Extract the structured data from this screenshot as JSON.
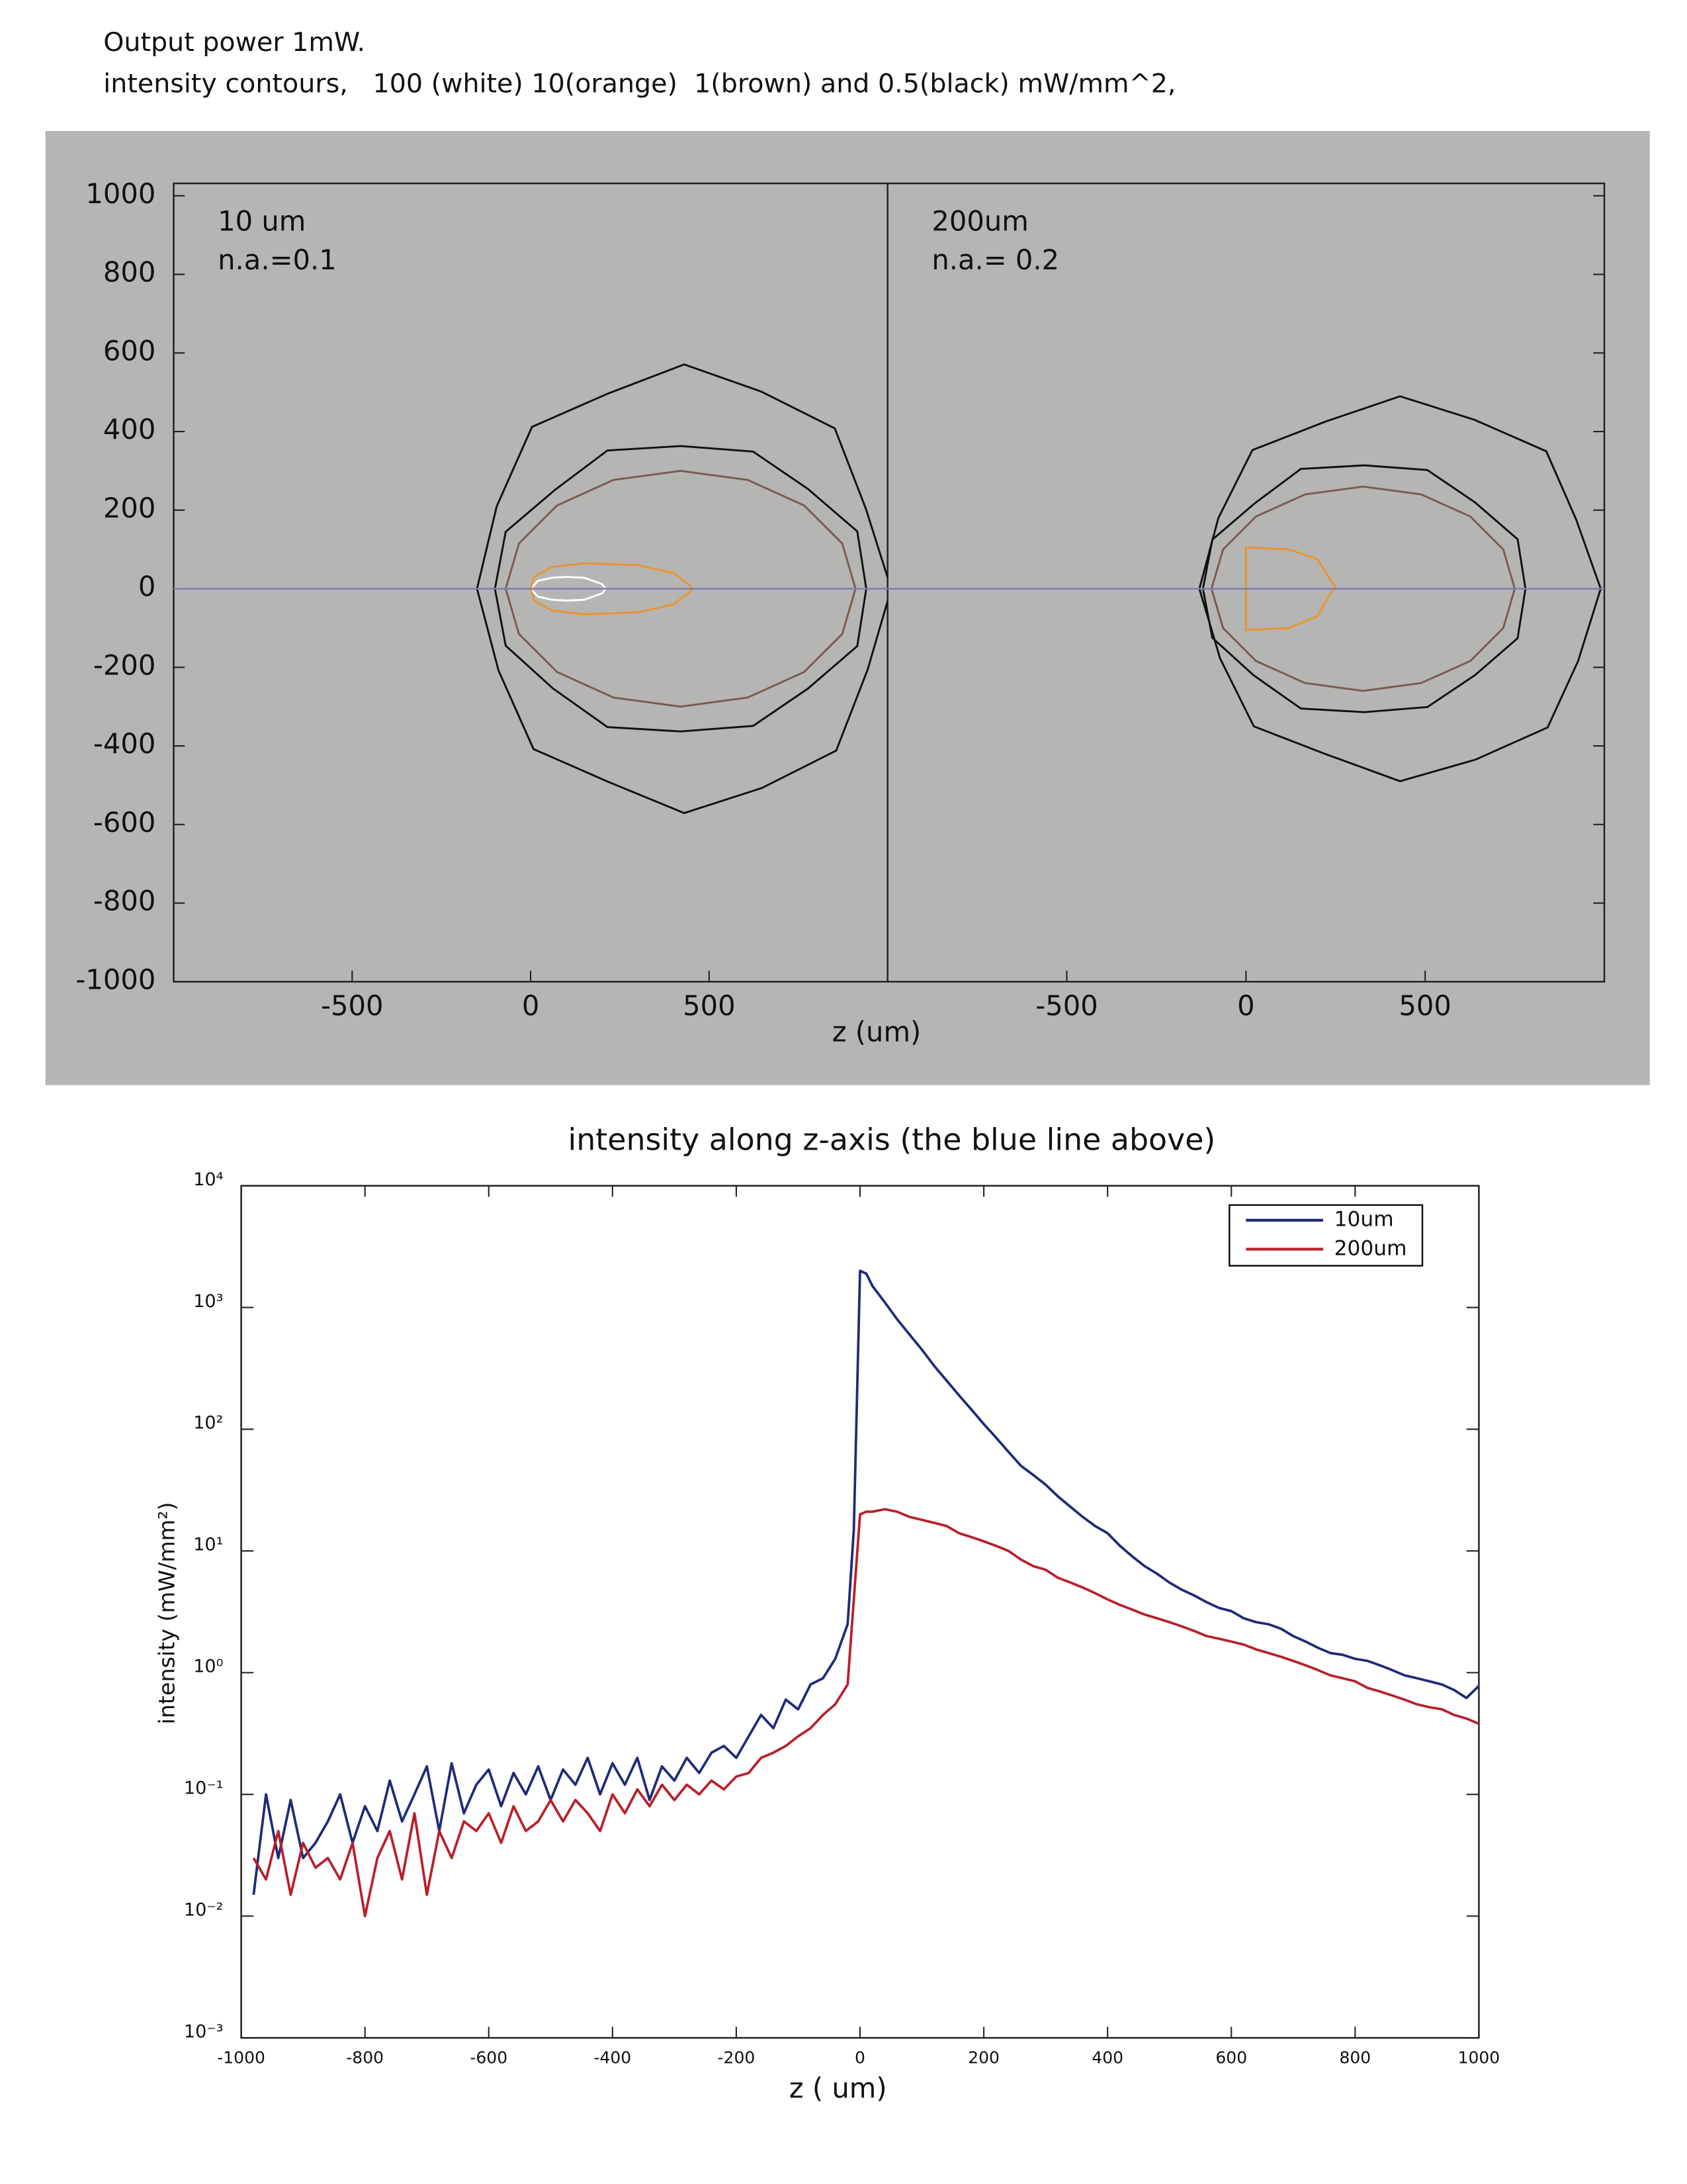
{
  "chart_data": [
    {
      "type": "contour_panels",
      "title": [
        "Output power 1mW.",
        "intensity contours,   100 (white) 10(orange)  1(brown) and 0.5(black) mW/mm^2,"
      ],
      "xlabel": "z (um)",
      "ylim": [
        -1000,
        1000
      ],
      "yticks": [
        -1000,
        -800,
        -600,
        -400,
        -200,
        0,
        200,
        400,
        600,
        800,
        1000
      ],
      "guide_line": {
        "y": 0,
        "color": "#7e7eb0"
      },
      "panels": [
        {
          "annotations": [
            "10 um",
            "n.a.=0.1"
          ],
          "xlim": [
            -1000,
            1000
          ],
          "xticks": [
            -500,
            0,
            500
          ],
          "contours": [
            {
              "color": "#ffffff",
              "x": [
                0,
                20,
                60,
                100,
                150,
                200,
                210,
                200,
                150,
                100,
                60,
                20
              ],
              "y": [
                0,
                20,
                28,
                30,
                28,
                12,
                0,
                -12,
                -28,
                -30,
                -28,
                -20
              ]
            },
            {
              "color": "#e8962e",
              "x": [
                0,
                10,
                60,
                150,
                300,
                400,
                450,
                450,
                400,
                300,
                150,
                60,
                10
              ],
              "y": [
                0,
                30,
                55,
                65,
                60,
                40,
                5,
                -5,
                -40,
                -60,
                -65,
                -55,
                -30
              ]
            },
            {
              "color": "#7a5a50",
              "x": [
                910,
                873,
                766,
                608,
                420,
                232,
                74,
                -33,
                -70,
                -33,
                74,
                232,
                420,
                608,
                766,
                873
              ],
              "y": [
                0,
                115,
                212,
                277,
                300,
                277,
                212,
                115,
                0,
                -115,
                -212,
                -277,
                -300,
                -277,
                -212,
                -115
              ]
            },
            {
              "color": "#111111",
              "x": [
                1010,
                939,
                852,
                645,
                430,
                217,
                4,
                -95,
                -150,
                -90,
                8,
                219,
                430,
                648,
                856,
                944
              ],
              "y": [
                0,
                204,
                408,
                502,
                571,
                497,
                412,
                210,
                0,
                -208,
                -408,
                -492,
                -571,
                -507,
                -412,
                -206
              ]
            },
            {
              "color": "#111111",
              "x": [
                940,
                915,
                777,
                623,
                420,
                215,
                67,
                -70,
                -100,
                -70,
                63,
                215,
                420,
                623,
                777,
                915
              ],
              "y": [
                0,
                146,
                254,
                349,
                363,
                352,
                251,
                145,
                0,
                -145,
                -254,
                -352,
                -363,
                -349,
                -254,
                -146
              ]
            }
          ]
        },
        {
          "annotations": [
            "200um",
            "n.a.= 0.2"
          ],
          "xlim": [
            -1000,
            1000
          ],
          "xticks": [
            -500,
            0,
            500
          ],
          "contours": [
            {
              "color": "#e8962e",
              "x": [
                0,
                120,
                200,
                230,
                250,
                230,
                200,
                120,
                0
              ],
              "y": [
                105,
                100,
                75,
                30,
                5,
                -20,
                -70,
                -100,
                -105
              ]
            },
            {
              "color": "#7a5a50",
              "x": [
                750,
                718,
                626,
                489,
                327,
                165,
                28,
                -64,
                -96,
                -64,
                28,
                165,
                327,
                489,
                626,
                718
              ],
              "y": [
                0,
                100,
                184,
                240,
                260,
                240,
                184,
                100,
                0,
                -100,
                -184,
                -240,
                -260,
                -240,
                -184,
                -100
              ]
            },
            {
              "color": "#111111",
              "x": [
                990,
                922,
                838,
                638,
                430,
                224,
                18,
                -77,
                -130,
                -72,
                22,
                226,
                430,
                640,
                842,
                927
              ],
              "y": [
                0,
                175,
                350,
                430,
                490,
                426,
                353,
                180,
                0,
                -178,
                -350,
                -422,
                -490,
                -435,
                -353,
                -184
              ]
            },
            {
              "color": "#111111",
              "x": [
                780,
                758,
                639,
                506,
                330,
                153,
                24,
                -94,
                -120,
                -94,
                21,
                153,
                330,
                506,
                639,
                758
              ],
              "y": [
                0,
                126,
                220,
                302,
                314,
                305,
                217,
                125,
                0,
                -125,
                -220,
                -305,
                -314,
                -301,
                -220,
                -126
              ]
            }
          ]
        }
      ]
    },
    {
      "type": "line",
      "title": "intensity along z-axis (the blue line above)",
      "xlabel": "z ( um)",
      "ylabel": "intensity (mW/mm²)",
      "log_y": true,
      "xlim": [
        -1000,
        1000
      ],
      "xticks": [
        -1000,
        -800,
        -600,
        -400,
        -200,
        0,
        200,
        400,
        600,
        800,
        1000
      ],
      "ylim": [
        0.001,
        10000
      ],
      "yticks": [
        {
          "value": 0.001,
          "label": "10⁻³"
        },
        {
          "value": 0.01,
          "label": "10⁻²"
        },
        {
          "value": 0.1,
          "label": "10⁻¹"
        },
        {
          "value": 1,
          "label": "10⁰"
        },
        {
          "value": 10,
          "label": "10¹"
        },
        {
          "value": 100,
          "label": "10²"
        },
        {
          "value": 1000,
          "label": "10³"
        },
        {
          "value": 10000,
          "label": "10⁴"
        }
      ],
      "legend": "upper right",
      "x": [
        -980,
        -960,
        -940,
        -920,
        -900,
        -880,
        -860,
        -840,
        -820,
        -800,
        -780,
        -760,
        -740,
        -720,
        -700,
        -680,
        -660,
        -640,
        -620,
        -600,
        -580,
        -560,
        -540,
        -520,
        -500,
        -480,
        -460,
        -440,
        -420,
        -400,
        -380,
        -360,
        -340,
        -320,
        -300,
        -280,
        -260,
        -240,
        -220,
        -200,
        -180,
        -160,
        -140,
        -120,
        -100,
        -80,
        -60,
        -40,
        -20,
        -10,
        0,
        10,
        20,
        40,
        60,
        80,
        100,
        120,
        140,
        160,
        180,
        200,
        220,
        240,
        260,
        280,
        300,
        320,
        340,
        360,
        380,
        400,
        420,
        440,
        460,
        480,
        500,
        520,
        540,
        560,
        580,
        600,
        620,
        640,
        660,
        680,
        700,
        720,
        740,
        760,
        780,
        800,
        820,
        840,
        860,
        880,
        900,
        920,
        940,
        960,
        980,
        1000
      ],
      "series": [
        {
          "name": "10um",
          "color": "#1f2a78",
          "values": [
            0.015,
            0.1,
            0.03,
            0.09,
            0.03,
            0.04,
            0.06,
            0.1,
            0.04,
            0.08,
            0.05,
            0.13,
            0.06,
            0.1,
            0.17,
            0.05,
            0.18,
            0.07,
            0.12,
            0.16,
            0.08,
            0.15,
            0.1,
            0.17,
            0.09,
            0.16,
            0.12,
            0.2,
            0.1,
            0.18,
            0.12,
            0.2,
            0.09,
            0.17,
            0.13,
            0.2,
            0.15,
            0.22,
            0.25,
            0.2,
            0.3,
            0.45,
            0.35,
            0.6,
            0.5,
            0.8,
            0.9,
            1.3,
            2.5,
            15,
            2000,
            1900,
            1500,
            1100,
            800,
            600,
            450,
            330,
            250,
            190,
            145,
            110,
            85,
            65,
            50,
            42,
            35,
            28,
            23,
            19,
            16,
            14,
            11,
            9,
            7.5,
            6.5,
            5.5,
            4.8,
            4.3,
            3.8,
            3.4,
            3.2,
            2.8,
            2.6,
            2.5,
            2.3,
            2.0,
            1.8,
            1.6,
            1.45,
            1.4,
            1.3,
            1.25,
            1.15,
            1.05,
            0.95,
            0.9,
            0.85,
            0.8,
            0.72,
            0.62,
            0.78
          ]
        },
        {
          "name": "200um",
          "color": "#b8202a",
          "values": [
            0.03,
            0.02,
            0.05,
            0.015,
            0.04,
            0.025,
            0.03,
            0.02,
            0.04,
            0.01,
            0.03,
            0.05,
            0.02,
            0.07,
            0.015,
            0.05,
            0.03,
            0.06,
            0.05,
            0.07,
            0.04,
            0.08,
            0.05,
            0.06,
            0.09,
            0.06,
            0.09,
            0.07,
            0.05,
            0.1,
            0.07,
            0.11,
            0.08,
            0.12,
            0.09,
            0.12,
            0.1,
            0.13,
            0.11,
            0.14,
            0.15,
            0.2,
            0.22,
            0.25,
            0.3,
            0.35,
            0.45,
            0.55,
            0.8,
            4,
            20,
            21,
            21,
            22,
            21,
            19,
            18,
            17,
            16,
            14,
            13,
            12,
            11,
            10,
            8.5,
            7.5,
            7,
            6,
            5.5,
            5,
            4.5,
            4,
            3.6,
            3.3,
            3,
            2.8,
            2.6,
            2.4,
            2.2,
            2.0,
            1.9,
            1.8,
            1.7,
            1.55,
            1.45,
            1.35,
            1.25,
            1.15,
            1.05,
            0.95,
            0.9,
            0.85,
            0.75,
            0.7,
            0.65,
            0.6,
            0.55,
            0.52,
            0.5,
            0.45,
            0.42,
            0.38
          ]
        }
      ]
    }
  ]
}
